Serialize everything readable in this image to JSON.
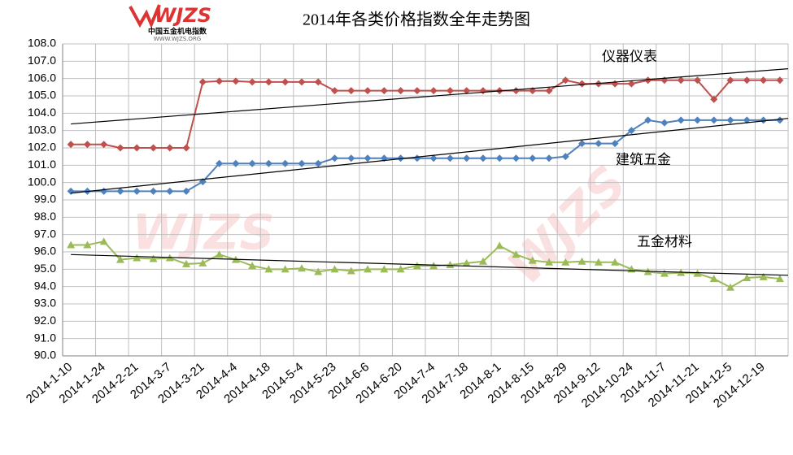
{
  "logo": {
    "mark": "WJZS",
    "name": "中国五金机电指数",
    "url": "WWW.WJZS.ORG"
  },
  "chart_data": {
    "type": "line",
    "title": "2014年各类价格指数全年走势图",
    "categories": [
      "2014-1-10",
      null,
      "2014-1-24",
      null,
      "2014-2-21",
      null,
      "2014-3-7",
      null,
      "2014-3-21",
      null,
      "2014-4-4",
      null,
      "2014-4-18",
      null,
      "2014-5-4",
      null,
      "2014-5-23",
      null,
      "2014-6-6",
      null,
      "2014-6-20",
      null,
      "2014-7-4",
      null,
      "2014-7-18",
      null,
      "2014-8-1",
      null,
      "2014-8-15",
      null,
      "2014-8-29",
      null,
      "2014-9-12",
      null,
      "2014-10-24",
      null,
      "2014-11-7",
      null,
      "2014-11-21",
      null,
      "2014-12-5",
      null,
      "2014-12-19",
      null
    ],
    "series": [
      {
        "name": "仪器仪表",
        "color": "#c0504d",
        "marker": "diamond",
        "values": [
          102.2,
          102.2,
          102.2,
          102.0,
          102.0,
          102.0,
          102.0,
          102.0,
          105.8,
          105.85,
          105.85,
          105.8,
          105.8,
          105.8,
          105.8,
          105.8,
          105.3,
          105.3,
          105.3,
          105.3,
          105.3,
          105.3,
          105.3,
          105.3,
          105.3,
          105.3,
          105.3,
          105.3,
          105.3,
          105.3,
          105.9,
          105.7,
          105.7,
          105.7,
          105.7,
          105.9,
          105.9,
          105.9,
          105.9,
          104.8,
          105.9,
          105.9,
          105.9,
          105.9
        ]
      },
      {
        "name": "建筑五金",
        "color": "#4f81bd",
        "marker": "diamond",
        "values": [
          99.5,
          99.5,
          99.5,
          99.5,
          99.5,
          99.5,
          99.5,
          99.5,
          100.05,
          101.1,
          101.1,
          101.1,
          101.1,
          101.1,
          101.1,
          101.1,
          101.4,
          101.4,
          101.4,
          101.4,
          101.4,
          101.4,
          101.4,
          101.4,
          101.4,
          101.4,
          101.4,
          101.4,
          101.4,
          101.4,
          101.5,
          102.25,
          102.25,
          102.25,
          103.0,
          103.6,
          103.45,
          103.6,
          103.6,
          103.6,
          103.6,
          103.6,
          103.6,
          103.6
        ]
      },
      {
        "name": "五金材料",
        "color": "#9bbb59",
        "marker": "triangle",
        "values": [
          96.4,
          96.4,
          96.6,
          95.55,
          95.65,
          95.6,
          95.65,
          95.3,
          95.35,
          95.85,
          95.55,
          95.2,
          95.0,
          95.0,
          95.05,
          94.85,
          95.0,
          94.9,
          95.0,
          95.0,
          95.0,
          95.2,
          95.2,
          95.25,
          95.35,
          95.45,
          96.35,
          95.85,
          95.5,
          95.4,
          95.4,
          95.45,
          95.4,
          95.4,
          95.0,
          94.85,
          94.75,
          94.8,
          94.75,
          94.45,
          93.95,
          94.5,
          94.55,
          94.45
        ]
      }
    ],
    "ylim": [
      90,
      108
    ],
    "yticks": [
      {
        "value": 90,
        "label": "90.0"
      },
      {
        "value": 91,
        "label": "91.0"
      },
      {
        "value": 92,
        "label": "92.0"
      },
      {
        "value": 93,
        "label": "93.0"
      },
      {
        "value": 94,
        "label": "94.0"
      },
      {
        "value": 95,
        "label": "95.0"
      },
      {
        "value": 96,
        "label": "96.0"
      },
      {
        "value": 97,
        "label": "97.0"
      },
      {
        "value": 98,
        "label": "98.0"
      },
      {
        "value": 99,
        "label": "99.0"
      },
      {
        "value": 100,
        "label": "100.0"
      },
      {
        "value": 101,
        "label": "101.0"
      },
      {
        "value": 102,
        "label": "102.0"
      },
      {
        "value": 103,
        "label": "103.0"
      },
      {
        "value": 104,
        "label": "104.0"
      },
      {
        "value": 105,
        "label": "105.0"
      },
      {
        "value": 106,
        "label": "106.0"
      },
      {
        "value": 107,
        "label": "107.0"
      },
      {
        "value": 108,
        "label": "108.0"
      }
    ],
    "grid": true,
    "trendline": true
  }
}
